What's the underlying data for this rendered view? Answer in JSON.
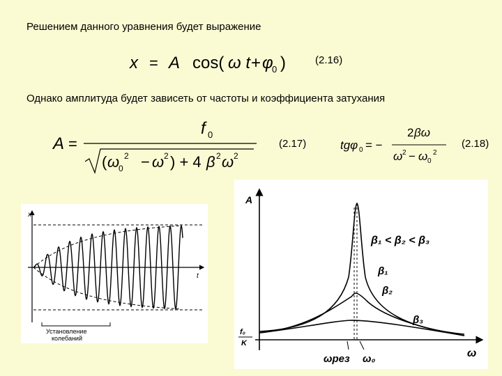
{
  "text": {
    "intro": "Решением данного уравнения будет выражение",
    "amplitude_note": "Однако амплитуда будет зависеть от частоты и коэффициента затухания"
  },
  "equations": {
    "eq16_label": "(2.16)",
    "eq17_label": "(2.17)",
    "eq18_label": "(2.18)"
  },
  "left_graph": {
    "x_axis": "x",
    "t_axis": "t",
    "caption_line1": "Установление",
    "caption_line2": "колебаний"
  },
  "right_graph": {
    "y_axis": "A",
    "x_axis": "ω",
    "beta_relation": "β₁ < β₂ < β₃",
    "beta1": "β₁",
    "beta2": "β₂",
    "beta3": "β₃",
    "omega_res": "ωрез",
    "omega0": "ω₀",
    "f0_over_k_top": "f₀",
    "f0_over_k_bottom": "K"
  }
}
